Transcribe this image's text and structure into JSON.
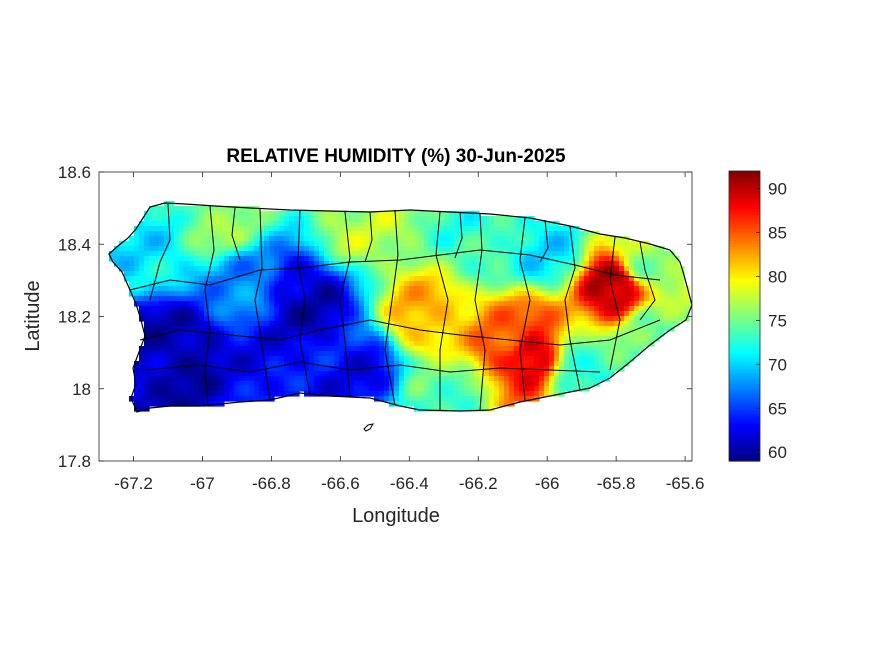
{
  "chart_data": {
    "type": "heatmap",
    "title": "RELATIVE HUMIDITY (%) 30-Jun-2025",
    "xlabel": "Longitude",
    "ylabel": "Latitude",
    "xlim": [
      -67.3,
      -65.58
    ],
    "ylim": [
      17.8,
      18.6
    ],
    "x_ticks": [
      -67.2,
      -67,
      -66.8,
      -66.6,
      -66.4,
      -66.2,
      -66,
      -65.8,
      -65.6
    ],
    "x_tick_labels": [
      "-67.2",
      "-67",
      "-66.8",
      "-66.6",
      "-66.4",
      "-66.2",
      "-66",
      "-65.8",
      "-65.6"
    ],
    "y_ticks": [
      17.8,
      18,
      18.2,
      18.4,
      18.6
    ],
    "y_tick_labels": [
      "17.8",
      "18",
      "18.2",
      "18.4",
      "18.6"
    ],
    "grid": false,
    "colorbar": {
      "min": 59,
      "max": 92,
      "ticks": [
        60,
        65,
        70,
        75,
        80,
        85,
        90
      ],
      "tick_labels": [
        "60",
        "65",
        "70",
        "75",
        "80",
        "85",
        "90"
      ],
      "colormap": "jet",
      "orientation": "vertical",
      "placement": "right"
    },
    "field_centers": [
      {
        "lon": -67.15,
        "lat": 18.15,
        "value": 61
      },
      {
        "lon": -67.05,
        "lat": 18.1,
        "value": 60
      },
      {
        "lon": -66.85,
        "lat": 18.05,
        "value": 63
      },
      {
        "lon": -66.7,
        "lat": 18.25,
        "value": 61
      },
      {
        "lon": -66.55,
        "lat": 18.05,
        "value": 63
      },
      {
        "lon": -66.9,
        "lat": 18.3,
        "value": 68
      },
      {
        "lon": -67.15,
        "lat": 18.35,
        "value": 71
      },
      {
        "lon": -66.95,
        "lat": 18.45,
        "value": 76
      },
      {
        "lon": -66.55,
        "lat": 18.45,
        "value": 77
      },
      {
        "lon": -66.35,
        "lat": 18.2,
        "value": 82
      },
      {
        "lon": -66.1,
        "lat": 18.15,
        "value": 84
      },
      {
        "lon": -66.05,
        "lat": 18.1,
        "value": 90
      },
      {
        "lon": -66.2,
        "lat": 18.4,
        "value": 73
      },
      {
        "lon": -66.0,
        "lat": 18.38,
        "value": 71
      },
      {
        "lon": -65.8,
        "lat": 18.28,
        "value": 91
      },
      {
        "lon": -65.72,
        "lat": 18.35,
        "value": 76
      },
      {
        "lon": -65.9,
        "lat": 18.05,
        "value": 72
      },
      {
        "lon": -66.3,
        "lat": 17.98,
        "value": 74
      },
      {
        "lon": -65.7,
        "lat": 18.15,
        "value": 74
      }
    ]
  }
}
